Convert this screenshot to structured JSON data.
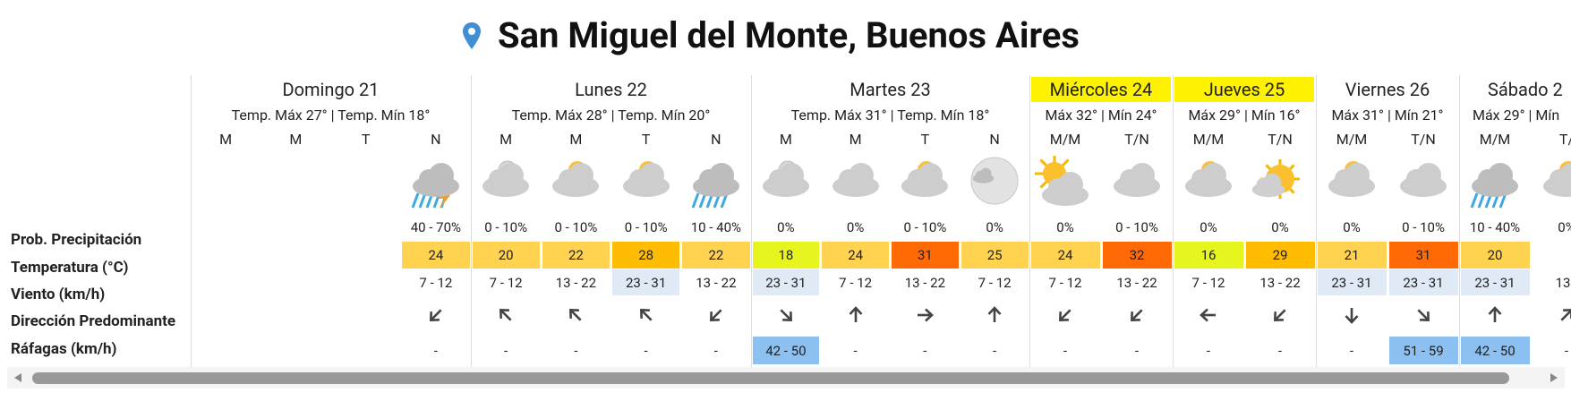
{
  "header": {
    "title": "San Miguel del Monte, Buenos Aires"
  },
  "row_labels": [
    "Prob. Precipitación",
    "Temperatura (°C)",
    "Viento (km/h)",
    "Dirección Predominante",
    "Ráfagas (km/h)"
  ],
  "days": [
    {
      "name": "Domingo 21",
      "summary": "Temp. Máx 27° | Temp. Mín 18°",
      "periods": [
        {
          "label": "M"
        },
        {
          "label": "M"
        },
        {
          "label": "T"
        },
        {
          "label": "N",
          "precip": "40 - 70%",
          "temp": 24,
          "wind": "7 - 12",
          "gust": "-"
        }
      ]
    },
    {
      "name": "Lunes 22",
      "summary": "Temp. Máx 28° | Temp. Mín 20°",
      "periods": [
        {
          "label": "M",
          "precip": "0 - 10%",
          "temp": 20,
          "wind": "7 - 12",
          "gust": "-"
        },
        {
          "label": "M",
          "precip": "0 - 10%",
          "temp": 22,
          "wind": "13 - 22",
          "gust": "-"
        },
        {
          "label": "T",
          "precip": "0 - 10%",
          "temp": 28,
          "wind": "23 - 31",
          "gust": "-"
        },
        {
          "label": "N",
          "precip": "10 - 40%",
          "temp": 22,
          "wind": "13 - 22",
          "gust": "-"
        }
      ]
    },
    {
      "name": "Martes 23",
      "summary": "Temp. Máx 31° | Temp. Mín 18°",
      "periods": [
        {
          "label": "M",
          "precip": "0%",
          "temp": 18,
          "wind": "23 - 31",
          "gust": "42 - 50"
        },
        {
          "label": "M",
          "precip": "0%",
          "temp": 24,
          "wind": "7 - 12",
          "gust": "-"
        },
        {
          "label": "T",
          "precip": "0 - 10%",
          "temp": 31,
          "wind": "13 - 22",
          "gust": "-"
        },
        {
          "label": "N",
          "precip": "0%",
          "temp": 25,
          "wind": "7 - 12",
          "gust": "-"
        }
      ]
    },
    {
      "name": "Miércoles 24",
      "summary": "Máx 32° | Mín 24°",
      "highlight": true,
      "periods": [
        {
          "label": "M/M",
          "precip": "0%",
          "temp": 24,
          "wind": "7 - 12",
          "gust": "-"
        },
        {
          "label": "T/N",
          "precip": "0 - 10%",
          "temp": 32,
          "wind": "13 - 22",
          "gust": "-"
        }
      ]
    },
    {
      "name": "Jueves 25",
      "summary": "Máx 29° | Mín 16°",
      "highlight": true,
      "periods": [
        {
          "label": "M/M",
          "precip": "0%",
          "temp": 16,
          "wind": "7 - 12",
          "gust": "-"
        },
        {
          "label": "T/N",
          "precip": "0%",
          "temp": 29,
          "wind": "13 - 22",
          "gust": "-"
        }
      ]
    },
    {
      "name": "Viernes 26",
      "summary": "Máx 31° | Mín 21°",
      "periods": [
        {
          "label": "M/M",
          "precip": "0%",
          "temp": 21,
          "wind": "23 - 31",
          "gust": "-"
        },
        {
          "label": "T/N",
          "precip": "0 - 10%",
          "temp": 31,
          "wind": "23 - 31",
          "gust": "51 - 59"
        }
      ]
    },
    {
      "name": "Sábado 2",
      "summary": "Máx 29° | Mín",
      "periods": [
        {
          "label": "M/M",
          "precip": "10 - 40%",
          "temp": 20,
          "wind": "23 - 31",
          "gust": "42 - 50"
        },
        {
          "label": "T/",
          "precip": "0%",
          "wind": "13 -",
          "gust": "-"
        }
      ]
    }
  ]
}
